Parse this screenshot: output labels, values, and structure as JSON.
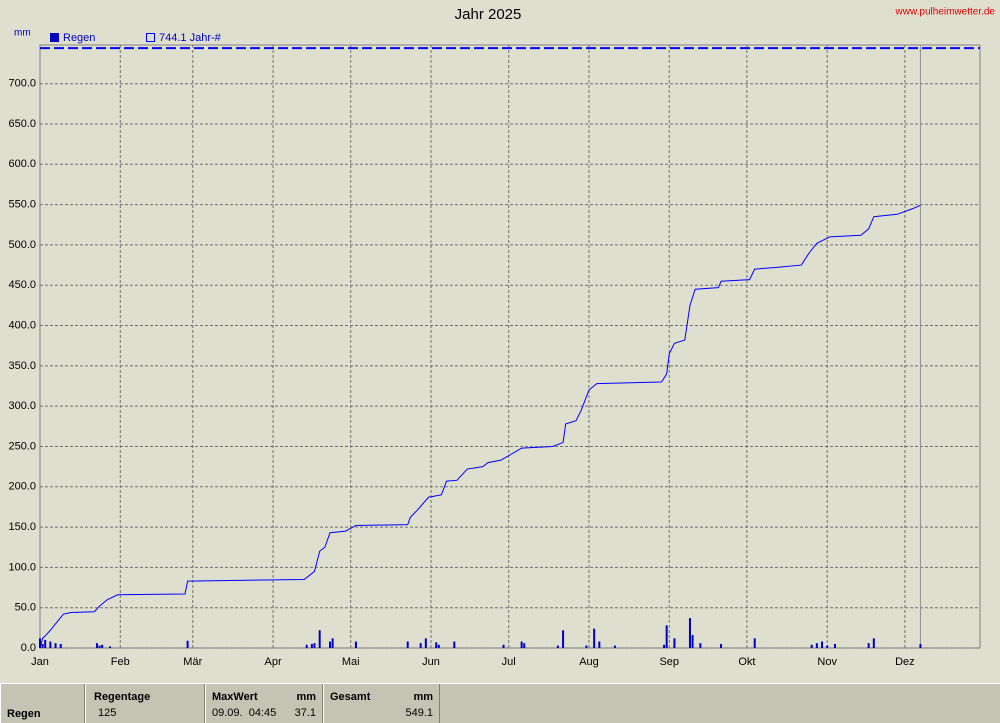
{
  "chart_data": {
    "type": "bar",
    "title": "Jahr 2025",
    "source": "www.pulheimwetter.de",
    "y_label": "mm",
    "xlim": [
      0,
      363
    ],
    "xticks": [
      {
        "value": 0,
        "label": "Jan"
      },
      {
        "value": 31,
        "label": "Feb"
      },
      {
        "value": 59,
        "label": "Mär"
      },
      {
        "value": 90,
        "label": "Apr"
      },
      {
        "value": 120,
        "label": "Mai"
      },
      {
        "value": 151,
        "label": "Jun"
      },
      {
        "value": 181,
        "label": "Jul"
      },
      {
        "value": 212,
        "label": "Aug"
      },
      {
        "value": 243,
        "label": "Sep"
      },
      {
        "value": 273,
        "label": "Okt"
      },
      {
        "value": 304,
        "label": "Nov"
      },
      {
        "value": 334,
        "label": "Dez"
      }
    ],
    "ylim": [
      0,
      748
    ],
    "yticks": [
      {
        "value": 0,
        "label": "0.0"
      },
      {
        "value": 50,
        "label": "50.0"
      },
      {
        "value": 100,
        "label": "100.0"
      },
      {
        "value": 150,
        "label": "150.0"
      },
      {
        "value": 200,
        "label": "200.0"
      },
      {
        "value": 250,
        "label": "250.0"
      },
      {
        "value": 300,
        "label": "300.0"
      },
      {
        "value": 350,
        "label": "350.0"
      },
      {
        "value": 400,
        "label": "400.0"
      },
      {
        "value": 450,
        "label": "450.0"
      },
      {
        "value": 500,
        "label": "500.0"
      },
      {
        "value": 550,
        "label": "550.0"
      },
      {
        "value": 600,
        "label": "600.0"
      },
      {
        "value": 650,
        "label": "650.0"
      },
      {
        "value": 700,
        "label": "700.0"
      }
    ],
    "grid": true,
    "series": [
      {
        "name": "Regen",
        "color": "#0000c0",
        "x": [
          0,
          1,
          2,
          4,
          6,
          8,
          22,
          23,
          24,
          27,
          57,
          103,
          105,
          106,
          108,
          112,
          113,
          122,
          142,
          147,
          149,
          153,
          154,
          160,
          179,
          186,
          187,
          200,
          202,
          211,
          214,
          216,
          222,
          241,
          242,
          245,
          251,
          252,
          255,
          263,
          276,
          298,
          300,
          302,
          304,
          307,
          320,
          322,
          340
        ],
        "values": [
          12,
          5,
          10,
          8,
          6,
          5,
          6,
          3,
          4,
          2,
          9,
          4,
          5,
          6,
          22,
          8,
          12,
          8,
          8,
          6,
          12,
          7,
          4,
          8,
          4,
          8,
          6,
          3,
          22,
          3,
          24,
          8,
          3,
          4,
          28,
          12,
          37.1,
          16,
          6,
          5,
          12,
          4,
          6,
          8,
          3,
          5,
          6,
          12,
          5
        ]
      },
      {
        "name": "744.1 Jahr-#",
        "color": "#0000ff",
        "value": 744.1
      }
    ],
    "cumulative": {
      "color": "#0000ff",
      "x": [
        0,
        1,
        2,
        4,
        6,
        9,
        12,
        21,
        23,
        26,
        30,
        56,
        57,
        102,
        106,
        108,
        110,
        112,
        118,
        122,
        142,
        143,
        146,
        150,
        155,
        157,
        161,
        165,
        171,
        173,
        178,
        186,
        198,
        202,
        203,
        207,
        209,
        212,
        215,
        240,
        242,
        243,
        245,
        249,
        251,
        253,
        262,
        263,
        274,
        276,
        284,
        294,
        297,
        300,
        305,
        317,
        320,
        322,
        331,
        337,
        340
      ],
      "values": [
        0,
        12,
        15,
        22,
        30,
        42,
        44,
        45,
        52,
        60,
        66,
        67,
        83,
        85,
        95,
        120,
        125,
        143,
        145,
        152,
        153,
        162,
        172,
        187,
        190,
        207,
        208,
        222,
        225,
        230,
        233,
        248,
        250,
        255,
        278,
        282,
        295,
        320,
        328,
        330,
        340,
        365,
        378,
        382,
        425,
        445,
        447,
        455,
        457,
        470,
        472,
        475,
        490,
        502,
        510,
        512,
        520,
        535,
        538,
        545,
        549.1
      ]
    }
  },
  "summary": {
    "row_label": "Regen",
    "regentage": {
      "header": "Regentage",
      "value": "125"
    },
    "maxwert": {
      "header": "MaxWert",
      "unit": "mm",
      "date": "09.09.  04:45",
      "value": "37.1"
    },
    "gesamt": {
      "header": "Gesamt",
      "unit": "mm",
      "value": "549.1"
    }
  }
}
